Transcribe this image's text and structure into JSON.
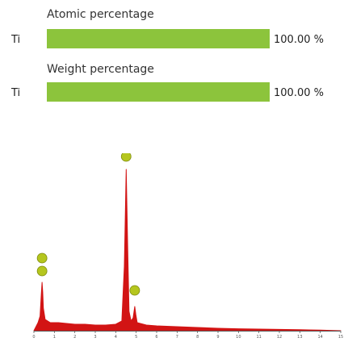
{
  "atomic": {
    "title": "Atomic percentage",
    "rows": [
      {
        "element": "Ti",
        "value": 100.0,
        "label": "100.00 %"
      }
    ]
  },
  "weight": {
    "title": "Weight percentage",
    "rows": [
      {
        "element": "Ti",
        "value": 100.0,
        "label": "100.00 %"
      }
    ]
  },
  "colors": {
    "bar": "#8cc43c",
    "spectrum": "#d21414",
    "marker": "#b5c61e"
  },
  "chart_data": [
    {
      "type": "bar",
      "orientation": "horizontal",
      "title": "Atomic percentage",
      "categories": [
        "Ti"
      ],
      "values": [
        100.0
      ],
      "xlim": [
        0,
        100
      ]
    },
    {
      "type": "bar",
      "orientation": "horizontal",
      "title": "Weight percentage",
      "categories": [
        "Ti"
      ],
      "values": [
        100.0
      ],
      "xlim": [
        0,
        100
      ]
    },
    {
      "type": "line",
      "xlim": [
        0,
        15
      ],
      "x_ticks": [
        0,
        1,
        2,
        3,
        4,
        5,
        6,
        7,
        8,
        9,
        10,
        11,
        12,
        13,
        14,
        15
      ],
      "ylim": [
        0,
        1
      ],
      "series": [
        {
          "points": [
            [
              0.0,
              0.0
            ],
            [
              0.2,
              0.05
            ],
            [
              0.3,
              0.09
            ],
            [
              0.36,
              0.22
            ],
            [
              0.4,
              0.3
            ],
            [
              0.43,
              0.24
            ],
            [
              0.46,
              0.14
            ],
            [
              0.55,
              0.07
            ],
            [
              0.8,
              0.05
            ],
            [
              1.2,
              0.05
            ],
            [
              1.6,
              0.045
            ],
            [
              2.0,
              0.04
            ],
            [
              2.5,
              0.04
            ],
            [
              3.0,
              0.035
            ],
            [
              3.5,
              0.035
            ],
            [
              4.0,
              0.04
            ],
            [
              4.3,
              0.06
            ],
            [
              4.42,
              0.4
            ],
            [
              4.51,
              1.0
            ],
            [
              4.58,
              0.55
            ],
            [
              4.65,
              0.12
            ],
            [
              4.75,
              0.06
            ],
            [
              4.85,
              0.08
            ],
            [
              4.93,
              0.15
            ],
            [
              4.98,
              0.1
            ],
            [
              5.05,
              0.05
            ],
            [
              5.5,
              0.035
            ],
            [
              6.0,
              0.03
            ],
            [
              7.0,
              0.025
            ],
            [
              8.0,
              0.02
            ],
            [
              9.0,
              0.015
            ],
            [
              10.0,
              0.012
            ],
            [
              11.0,
              0.01
            ],
            [
              12.0,
              0.008
            ],
            [
              13.0,
              0.006
            ],
            [
              14.0,
              0.004
            ],
            [
              15.0,
              0.0
            ]
          ]
        }
      ],
      "peak_markers": [
        {
          "x": 0.4,
          "level": 0.42
        },
        {
          "x": 0.4,
          "level": 0.34
        },
        {
          "x": 4.51,
          "level": 1.05
        },
        {
          "x": 4.93,
          "level": 0.22
        }
      ]
    }
  ]
}
